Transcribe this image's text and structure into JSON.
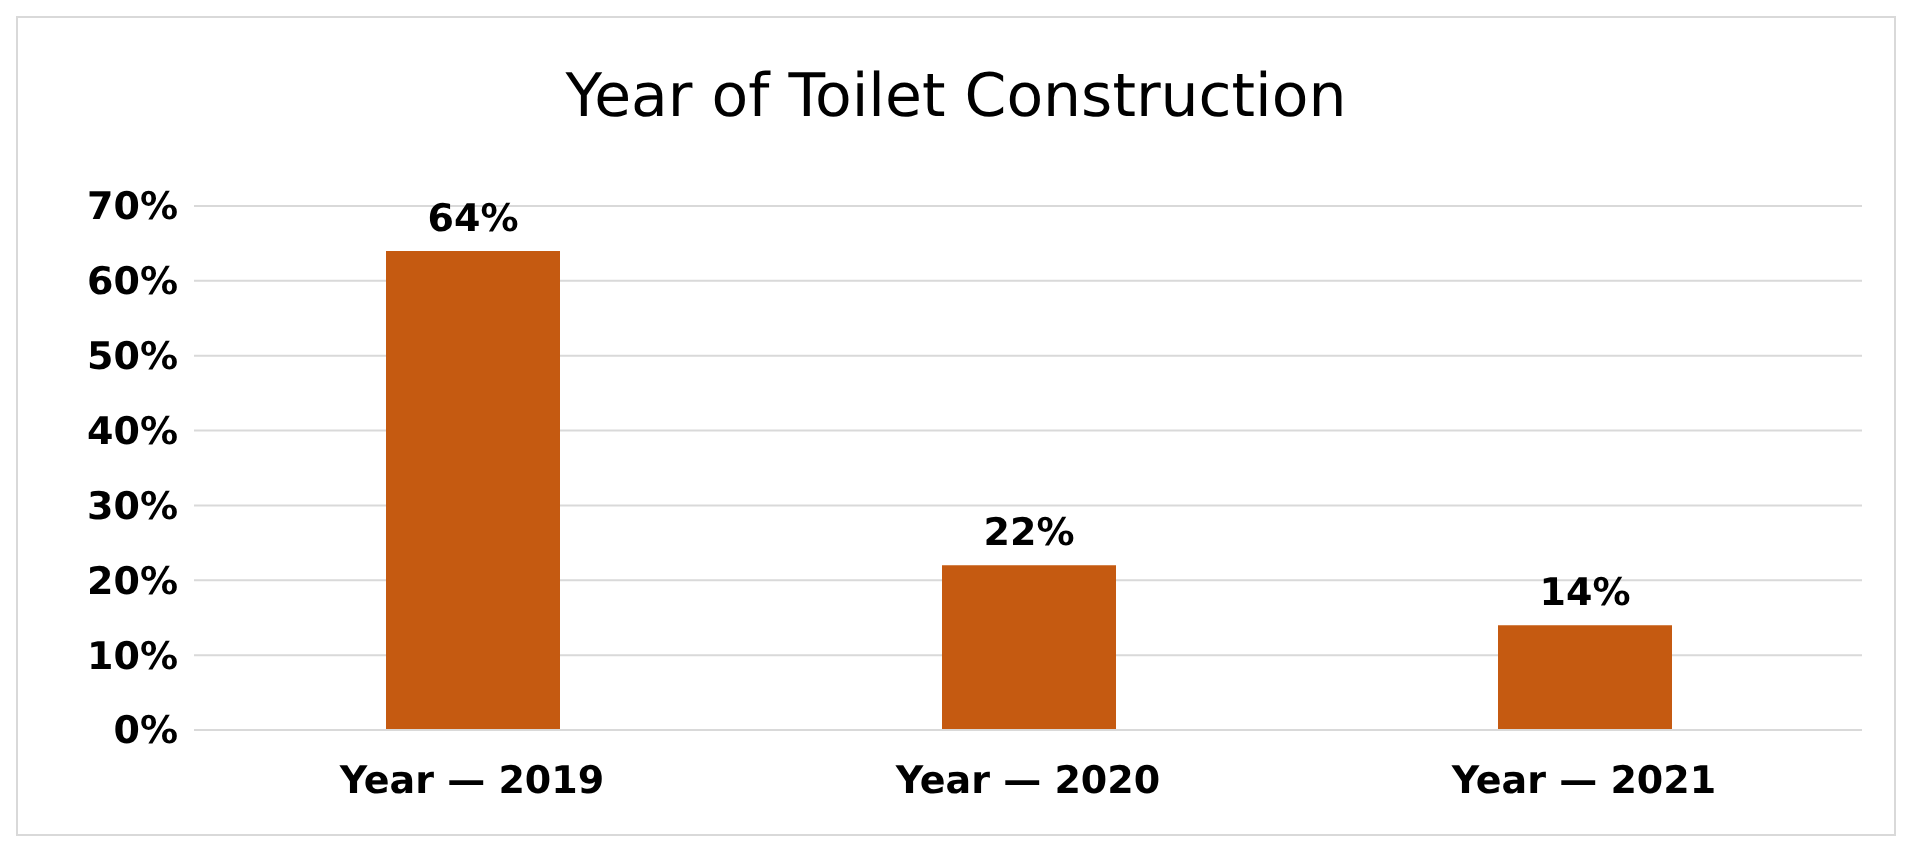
{
  "chart_data": {
    "type": "bar",
    "title": "Year of Toilet Construction",
    "categories": [
      "Year — 2019",
      "Year — 2020",
      "Year — 2021"
    ],
    "values": [
      64,
      22,
      14
    ],
    "value_labels": [
      "64%",
      "22%",
      "14%"
    ],
    "color": "#c55a11",
    "ylim": [
      0,
      70
    ],
    "yticks": [
      {
        "value": 0,
        "label": "0%"
      },
      {
        "value": 10,
        "label": "10%"
      },
      {
        "value": 20,
        "label": "20%"
      },
      {
        "value": 30,
        "label": "30%"
      },
      {
        "value": 40,
        "label": "40%"
      },
      {
        "value": 50,
        "label": "50%"
      },
      {
        "value": 60,
        "label": "60%"
      },
      {
        "value": 70,
        "label": "70%"
      }
    ],
    "grid": "y",
    "legend": false
  }
}
